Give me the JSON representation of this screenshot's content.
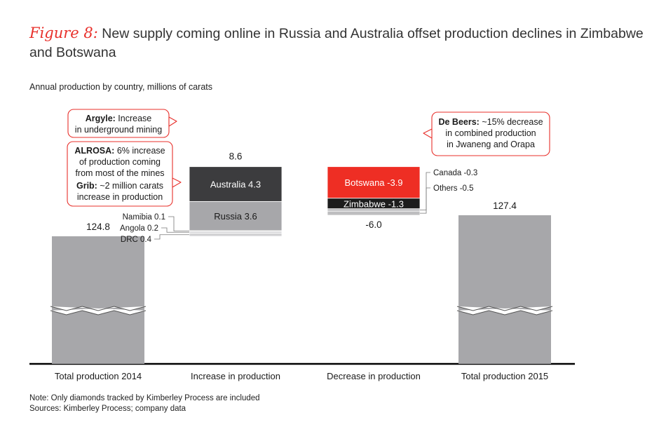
{
  "figure": {
    "label": "Figure 8:",
    "title": "New supply coming online in Russia and Australia offset production declines in Zimbabwe and Botswana",
    "subtitle": "Annual production by country, millions of carats",
    "note": "Note: Only diamonds tracked by Kimberley Process are included",
    "sources": "Sources: Kimberley Process; company data"
  },
  "colors": {
    "total": "#a7a7aa",
    "russia": "#a7a7aa",
    "australia": "#3c3c3e",
    "botswana": "#ee2e24",
    "zimbabwe": "#1c1c1c",
    "small_increase": "#d2d2d4",
    "small_decrease": "#bdbdbf",
    "accent": "#e8302b"
  },
  "chart_data": {
    "type": "bar",
    "subtype": "waterfall",
    "categories": [
      "Total production 2014",
      "Increase in production",
      "Decrease in production",
      "Total production 2015"
    ],
    "totals": [
      {
        "category": "Total production 2014",
        "value": 124.8,
        "label": "124.8"
      },
      {
        "category": "Total production 2015",
        "value": 127.4,
        "label": "127.4"
      }
    ],
    "increase": {
      "total": 8.6,
      "total_label": "8.6",
      "segments": [
        {
          "name": "DRC",
          "value": 0.4,
          "label": "DRC 0.4"
        },
        {
          "name": "Angola",
          "value": 0.2,
          "label": "Angola 0.2"
        },
        {
          "name": "Namibia",
          "value": 0.1,
          "label": "Namibia 0.1"
        },
        {
          "name": "Russia",
          "value": 3.6,
          "label": "Russia 3.6"
        },
        {
          "name": "Australia",
          "value": 4.3,
          "label": "Australia 4.3"
        }
      ]
    },
    "decrease": {
      "total": -6.0,
      "total_label": "-6.0",
      "segments": [
        {
          "name": "Botswana",
          "value": -3.9,
          "label": "Botswana -3.9"
        },
        {
          "name": "Zimbabwe",
          "value": -1.3,
          "label": "Zimbabwe -1.3"
        },
        {
          "name": "Canada",
          "value": -0.3,
          "label": "Canada -0.3"
        },
        {
          "name": "Others",
          "value": -0.5,
          "label": "Others -0.5"
        }
      ]
    },
    "axis_break": true
  },
  "callouts": {
    "argyle": {
      "bold": "Argyle:",
      "lines": [
        "Increase",
        "in underground mining"
      ]
    },
    "alrosa": {
      "bold": "ALROSA:",
      "lines": [
        "6% increase",
        "of production coming",
        "from most of the mines"
      ]
    },
    "grib": {
      "bold": "Grib:",
      "lines": [
        "~2 million carats",
        "increase in production"
      ]
    },
    "debeers": {
      "bold": "De Beers:",
      "lines": [
        "~15% decrease",
        "in combined production",
        "in Jwaneng and Orapa"
      ]
    }
  }
}
